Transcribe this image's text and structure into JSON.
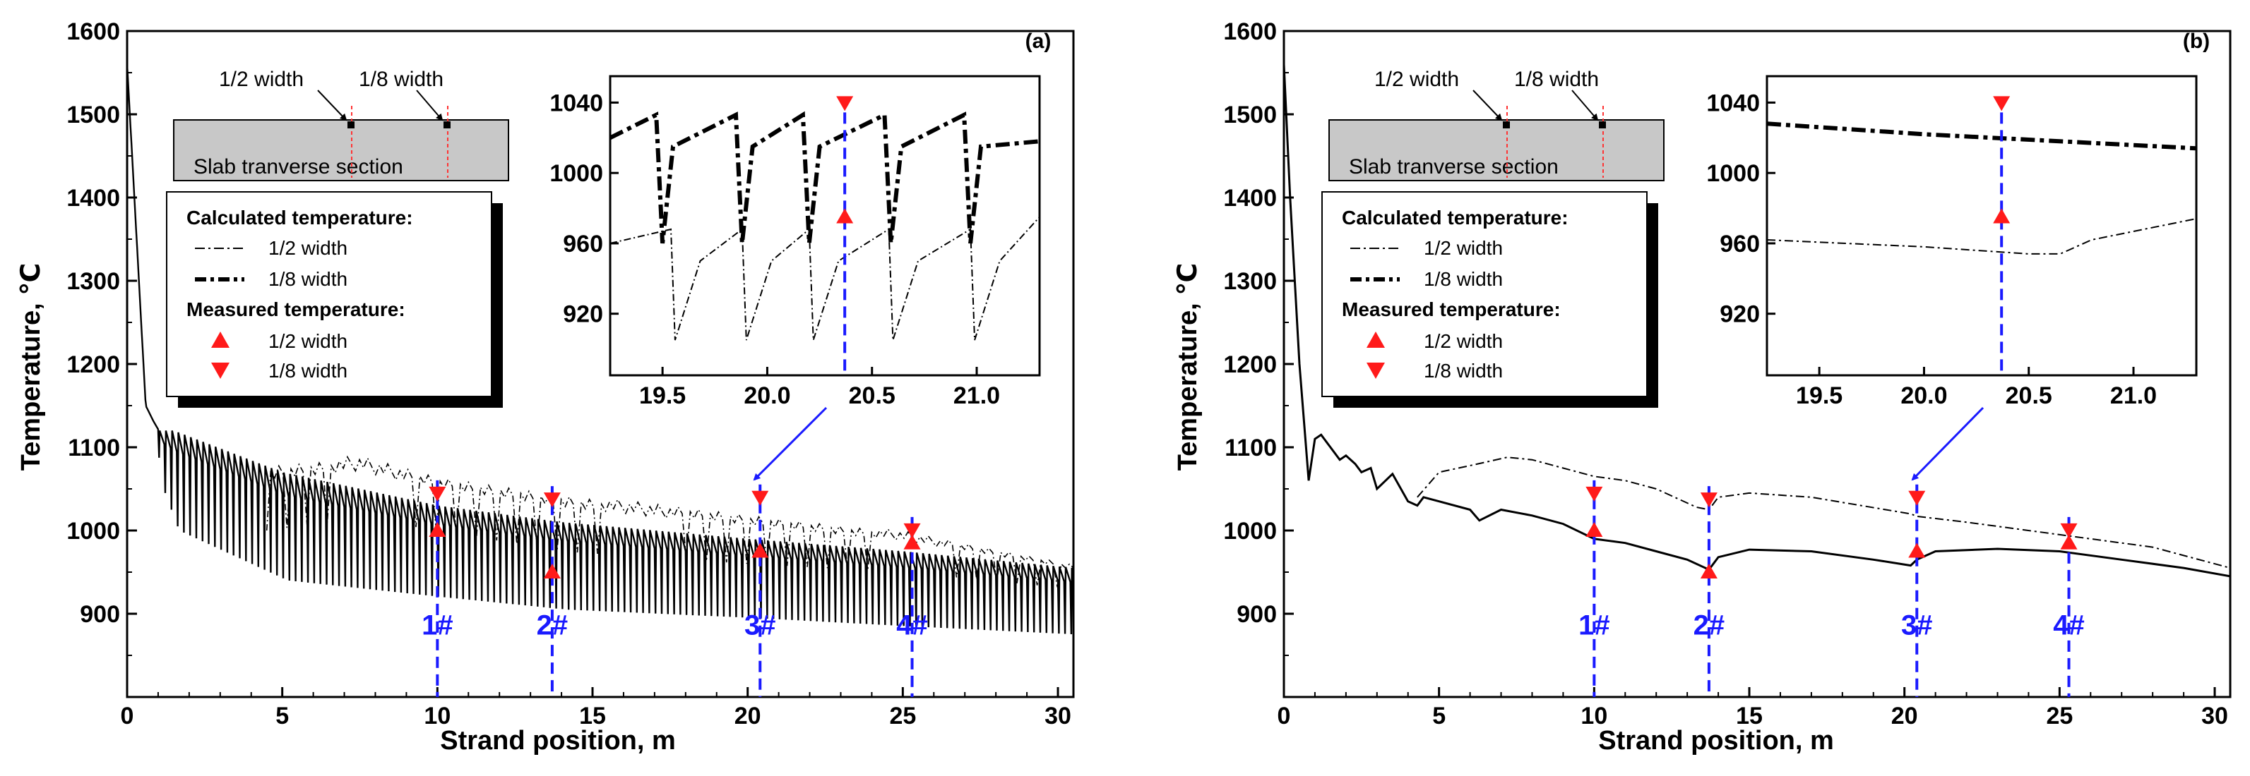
{
  "chart_data": [
    {
      "panel": "(a)",
      "type": "line",
      "xlabel": "Strand position, m",
      "ylabel": "Temperature, ℃",
      "xlim": [
        0,
        30.5
      ],
      "ylim": [
        800,
        1600
      ],
      "xticks": [
        0,
        5,
        10,
        15,
        20,
        25,
        30
      ],
      "yticks": [
        900,
        1000,
        1100,
        1200,
        1300,
        1400,
        1500,
        1600
      ],
      "series": [
        {
          "name": "1/2 width",
          "style": "dash-dot thin",
          "envelope_x": [
            4.5,
            7.5,
            10,
            14,
            20,
            25,
            30.5
          ],
          "envelope_max": [
            1080,
            1090,
            1065,
            1045,
            1020,
            1000,
            960
          ],
          "envelope_min": [
            1000,
            1015,
            1000,
            975,
            960,
            950,
            930
          ]
        },
        {
          "name": "1/8 width",
          "style": "solid oscillating",
          "envelope_x": [
            0,
            0.6,
            1,
            1.5,
            5,
            10,
            14,
            20,
            25,
            30.5
          ],
          "envelope_max": [
            1560,
            1150,
            1120,
            1120,
            1070,
            1030,
            1010,
            990,
            975,
            955
          ],
          "envelope_min": [
            1560,
            1150,
            1050,
            1000,
            940,
            920,
            905,
            895,
            885,
            875
          ]
        }
      ],
      "measured": [
        {
          "position": "1#",
          "x": 10.0,
          "half_width": 1000,
          "eighth_width": 1045
        },
        {
          "position": "2#",
          "x": 13.7,
          "half_width": 950,
          "eighth_width": 1038
        },
        {
          "position": "3#",
          "x": 20.4,
          "half_width": 975,
          "eighth_width": 1040
        },
        {
          "position": "4#",
          "x": 25.3,
          "half_width": 985,
          "eighth_width": 1001
        }
      ],
      "inset": {
        "xlim": [
          19.25,
          21.3
        ],
        "ylim": [
          885,
          1055
        ],
        "xticks": [
          19.5,
          20.0,
          20.5,
          21.0
        ],
        "yticks": [
          920,
          960,
          1000,
          1040
        ],
        "half_width_measured": {
          "x": 20.37,
          "y": 975
        },
        "eighth_width_measured": {
          "x": 20.37,
          "y": 1040
        }
      }
    },
    {
      "panel": "(b)",
      "type": "line",
      "xlabel": "Strand position, m",
      "ylabel": "Temperature, ℃",
      "xlim": [
        0,
        30.5
      ],
      "ylim": [
        800,
        1600
      ],
      "xticks": [
        0,
        5,
        10,
        15,
        20,
        25,
        30
      ],
      "yticks": [
        900,
        1000,
        1100,
        1200,
        1300,
        1400,
        1500,
        1600
      ],
      "series": [
        {
          "name": "1/2 width",
          "style": "dash-dot thin",
          "x": [
            4.3,
            5,
            6,
            7.2,
            8,
            9,
            10,
            11,
            12,
            13.3,
            13.7,
            14,
            15,
            17,
            20.2,
            20.4,
            22,
            25,
            28,
            30.5
          ],
          "y": [
            1040,
            1070,
            1078,
            1088,
            1085,
            1075,
            1065,
            1060,
            1050,
            1028,
            1025,
            1040,
            1045,
            1040,
            1020,
            1017,
            1010,
            995,
            980,
            955
          ]
        },
        {
          "name": "1/8 width",
          "style": "solid",
          "x": [
            0,
            0.2,
            0.5,
            0.8,
            1,
            1.2,
            1.5,
            1.8,
            2,
            2.3,
            2.5,
            2.8,
            3,
            3.5,
            4,
            4.3,
            4.5,
            5,
            6,
            6.3,
            7,
            8,
            9,
            10,
            11,
            12,
            13,
            13.7,
            14,
            15,
            17,
            19,
            20.2,
            20.4,
            21,
            23,
            25,
            27,
            29,
            30.5
          ],
          "y": [
            1560,
            1400,
            1200,
            1060,
            1110,
            1115,
            1100,
            1085,
            1090,
            1080,
            1070,
            1075,
            1050,
            1068,
            1035,
            1030,
            1040,
            1035,
            1025,
            1012,
            1025,
            1018,
            1008,
            990,
            985,
            975,
            965,
            953,
            968,
            977,
            975,
            965,
            958,
            965,
            975,
            978,
            975,
            965,
            955,
            945
          ]
        }
      ],
      "measured": [
        {
          "position": "1#",
          "x": 10.0,
          "half_width": 1000,
          "eighth_width": 1045
        },
        {
          "position": "2#",
          "x": 13.7,
          "half_width": 950,
          "eighth_width": 1038
        },
        {
          "position": "3#",
          "x": 20.4,
          "half_width": 975,
          "eighth_width": 1040
        },
        {
          "position": "4#",
          "x": 25.3,
          "half_width": 985,
          "eighth_width": 1001
        }
      ],
      "inset": {
        "xlim": [
          19.25,
          21.3
        ],
        "ylim": [
          885,
          1055
        ],
        "xticks": [
          19.5,
          20.0,
          20.5,
          21.0
        ],
        "yticks": [
          920,
          960,
          1000,
          1040
        ],
        "half_width_x": [
          19.25,
          20.0,
          20.5,
          20.65,
          20.8,
          21.3
        ],
        "half_width_y": [
          962,
          958,
          954,
          954,
          962,
          974
        ],
        "eighth_width_x": [
          19.25,
          20.0,
          21.3
        ],
        "eighth_width_y": [
          1028,
          1022,
          1014
        ],
        "half_width_measured": {
          "x": 20.37,
          "y": 975
        },
        "eighth_width_measured": {
          "x": 20.37,
          "y": 1040
        }
      }
    }
  ],
  "legend": {
    "calc_title": "Calculated temperature:",
    "half": "1/2 width",
    "eighth": "1/8 width",
    "meas_title": "Measured temperature:"
  },
  "section": {
    "title": "Slab tranverse section",
    "half_label": "1/2 width",
    "eighth_label": "1/8 width"
  },
  "colors": {
    "measured": "#ff1a1a",
    "positions": "#1a1aff"
  }
}
